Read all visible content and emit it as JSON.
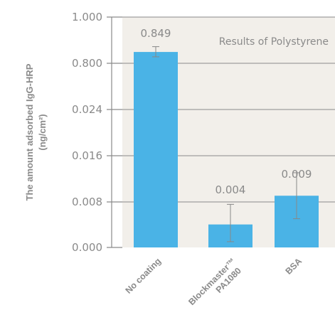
{
  "chart_data": {
    "type": "bar",
    "title": "",
    "note": "Results of Polystyrene",
    "ylabel_line1": "The amount adsorbed IgG-HRP",
    "ylabel_line2": "(ng/cm²)",
    "xlabel": "",
    "categories": [
      {
        "line1": "No coating",
        "line2": ""
      },
      {
        "line1": "Blockmaster™",
        "line2": "PA1080"
      },
      {
        "line1": "BSA",
        "line2": ""
      }
    ],
    "values": [
      0.849,
      0.004,
      0.009
    ],
    "value_labels": [
      "0.849",
      "0.004",
      "0.009"
    ],
    "error": [
      {
        "low": 0.828,
        "high": 0.872
      },
      {
        "low": 0.001,
        "high": 0.0075
      },
      {
        "low": 0.005,
        "high": 0.013
      }
    ],
    "yticks": [
      "0.000",
      "0.008",
      "0.016",
      "0.024",
      "0.800",
      "1.000"
    ],
    "y_scale": "broken",
    "grid": true,
    "colors": {
      "bar": "#4ab3e6",
      "panel": "#f2efea",
      "grid": "#8a8a8a",
      "text": "#8a8a8a",
      "error": "#888888"
    }
  }
}
